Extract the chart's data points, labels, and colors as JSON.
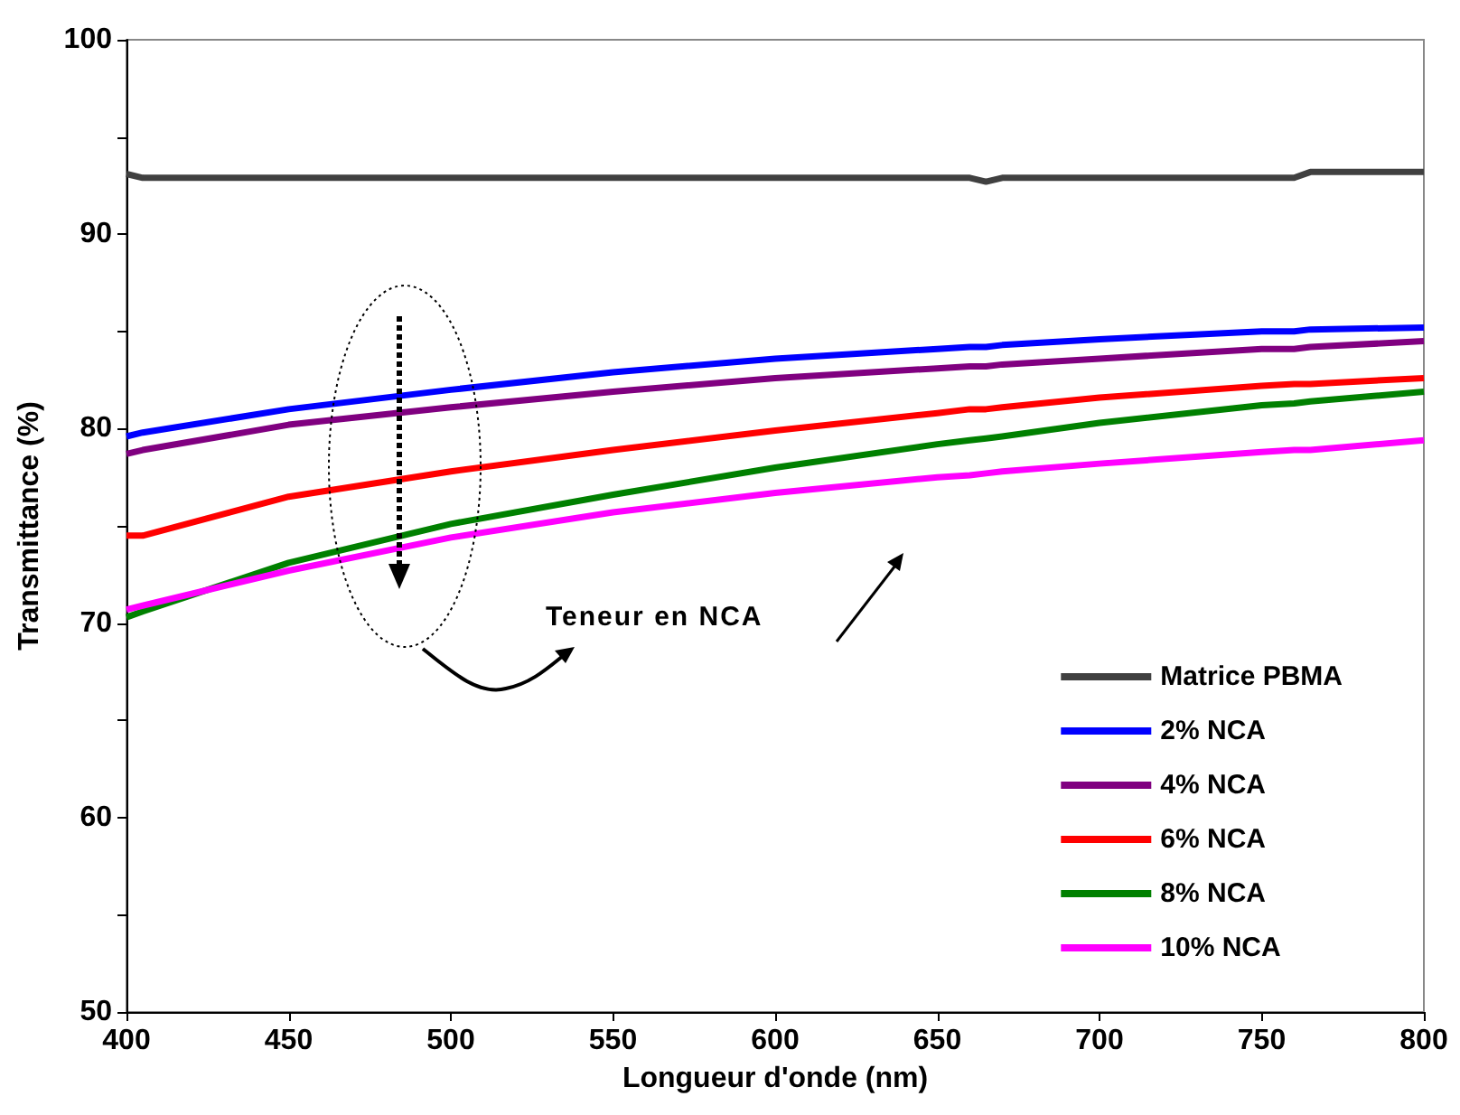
{
  "chart_data": {
    "type": "line",
    "xlabel": "Longueur d'onde (nm)",
    "ylabel": "Transmittance (%)",
    "x": [
      400,
      405,
      450,
      500,
      550,
      600,
      650,
      660,
      665,
      670,
      700,
      750,
      760,
      765,
      800
    ],
    "xlim": [
      400,
      800
    ],
    "xticks": [
      400,
      450,
      500,
      550,
      600,
      650,
      700,
      750,
      800
    ],
    "ylim": [
      50,
      100
    ],
    "yticks": [
      50,
      {
        "value": 55,
        "label": null
      },
      60,
      {
        "value": 65,
        "label": null
      },
      70,
      {
        "value": 75,
        "label": null
      },
      80,
      {
        "value": 85,
        "label": null
      },
      90,
      {
        "value": 95,
        "label": null
      },
      100
    ],
    "series": [
      {
        "name": "Matrice PBMA",
        "color": "#404040",
        "values": [
          93.1,
          92.9,
          92.9,
          92.9,
          92.9,
          92.9,
          92.9,
          92.9,
          92.7,
          92.9,
          92.9,
          92.9,
          92.9,
          93.2,
          93.2
        ]
      },
      {
        "name": "2% NCA",
        "color": "#0000ff",
        "values": [
          79.6,
          79.8,
          81.0,
          82.0,
          82.9,
          83.6,
          84.1,
          84.2,
          84.2,
          84.3,
          84.6,
          85.0,
          85.0,
          85.1,
          85.2
        ]
      },
      {
        "name": "4% NCA",
        "color": "#800080",
        "values": [
          78.7,
          78.9,
          80.2,
          81.1,
          81.9,
          82.6,
          83.1,
          83.2,
          83.2,
          83.3,
          83.6,
          84.1,
          84.1,
          84.2,
          84.5
        ]
      },
      {
        "name": "6% NCA",
        "color": "#ff0000",
        "values": [
          74.5,
          74.5,
          76.5,
          77.8,
          78.9,
          79.9,
          80.8,
          81.0,
          81.0,
          81.1,
          81.6,
          82.2,
          82.3,
          82.3,
          82.6
        ]
      },
      {
        "name": "8% NCA",
        "color": "#008000",
        "values": [
          70.3,
          70.6,
          73.1,
          75.1,
          76.6,
          78.0,
          79.2,
          79.4,
          79.5,
          79.6,
          80.3,
          81.2,
          81.3,
          81.4,
          81.9
        ]
      },
      {
        "name": "10% NCA",
        "color": "#ff00ff",
        "values": [
          70.7,
          70.9,
          72.7,
          74.4,
          75.7,
          76.7,
          77.5,
          77.6,
          77.7,
          77.8,
          78.2,
          78.8,
          78.9,
          78.9,
          79.4
        ]
      }
    ],
    "annotations": [
      "Teneur en NCA"
    ],
    "legend": "bottom right",
    "grid": false,
    "marker": "none",
    "line_style": "solid"
  }
}
